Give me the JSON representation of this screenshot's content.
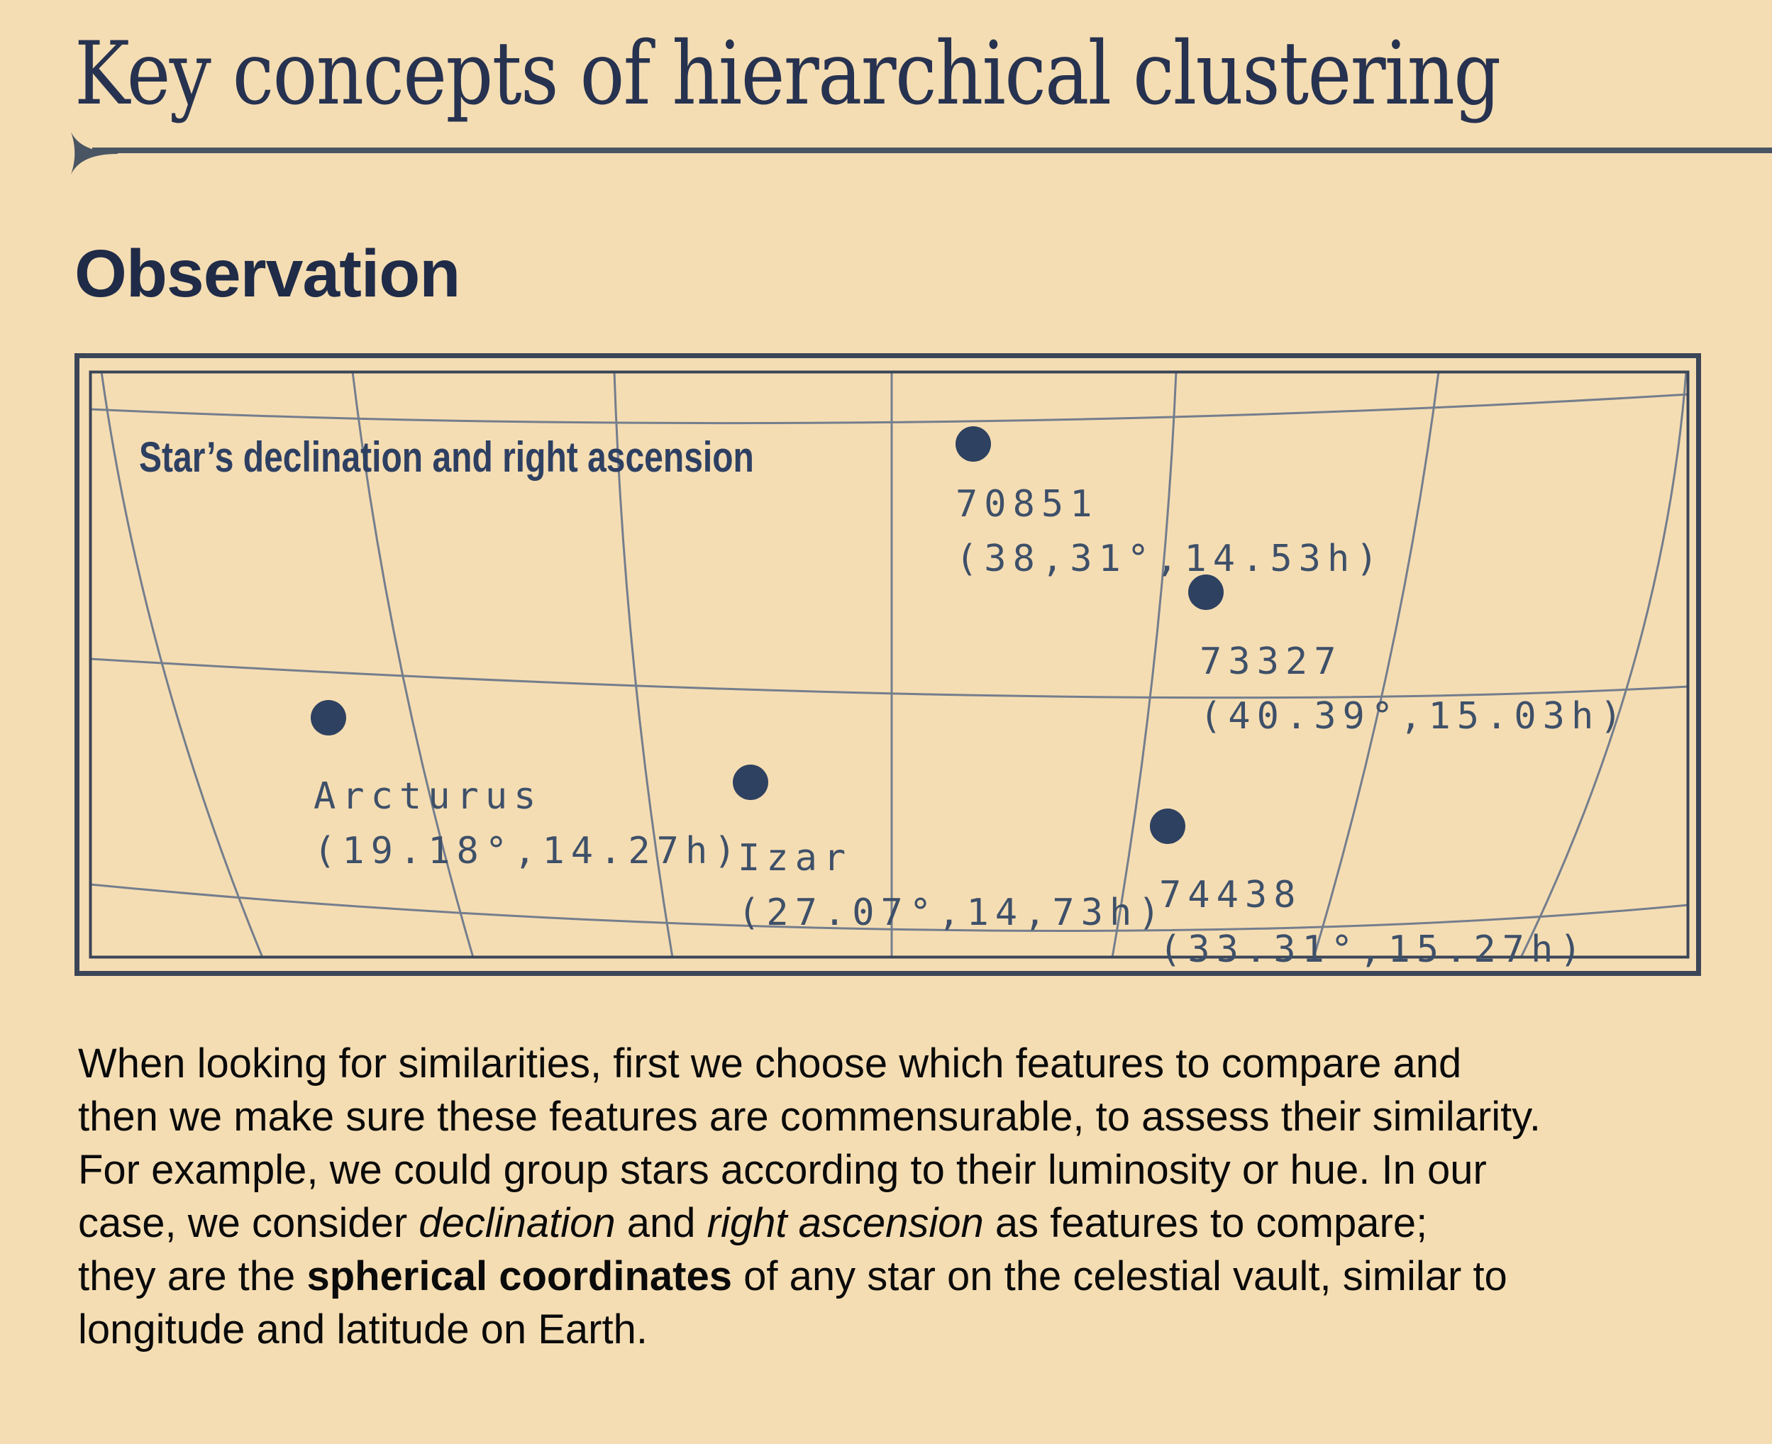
{
  "page": {
    "title": "Key concepts of hierarchical clustering",
    "section_heading": "Observation"
  },
  "colors": {
    "background": "#f5ddb3",
    "title_ink": "#26324f",
    "heading_ink": "#1f2b47",
    "rule_slate": "#4a5563",
    "chart_frame": "#3a4557",
    "grid_gray": "#747e8d",
    "star_dot_navy": "#2e4160",
    "star_label_navy": "#3e5069",
    "body_black": "#0a0a0a"
  },
  "chart_data": {
    "type": "scatter",
    "title": "Star’s declination and right ascension",
    "grid": "curved celestial graticule, double navy border, no tick labels",
    "legend": "none",
    "stars": [
      {
        "name": "70851",
        "declination_deg": 38.31,
        "right_ascension_h": 14.53,
        "coords_label": "(38,31°,14.53h)"
      },
      {
        "name": "73327",
        "declination_deg": 40.39,
        "right_ascension_h": 15.03,
        "coords_label": "(40.39°,15.03h)"
      },
      {
        "name": "Arcturus",
        "declination_deg": 19.18,
        "right_ascension_h": 14.27,
        "coords_label": "(19.18°,14.27h)"
      },
      {
        "name": "Izar",
        "declination_deg": 27.07,
        "right_ascension_h": 14.73,
        "coords_label": "(27.07°,14,73h)"
      },
      {
        "name": "74438",
        "declination_deg": 33.31,
        "right_ascension_h": 15.27,
        "coords_label": "(33.31°,15.27h)"
      }
    ]
  },
  "body": {
    "lines": [
      [
        {
          "t": "When looking for similarities, first we choose which features to compare and"
        }
      ],
      [
        {
          "t": "then we make sure these features are commensurable, to assess their similarity."
        }
      ],
      [
        {
          "t": "For example, we could group stars according to their luminosity or hue. In our"
        }
      ],
      [
        {
          "t": "case, we consider "
        },
        {
          "t": "declination",
          "style": "italic"
        },
        {
          "t": " and "
        },
        {
          "t": "right ascension",
          "style": "italic"
        },
        {
          "t": " as features to compare;"
        }
      ],
      [
        {
          "t": "they are the "
        },
        {
          "t": "spherical coordinates",
          "style": "bold"
        },
        {
          "t": " of any star on the celestial vault, similar to"
        }
      ],
      [
        {
          "t": "longitude and latitude on Earth."
        }
      ]
    ]
  }
}
